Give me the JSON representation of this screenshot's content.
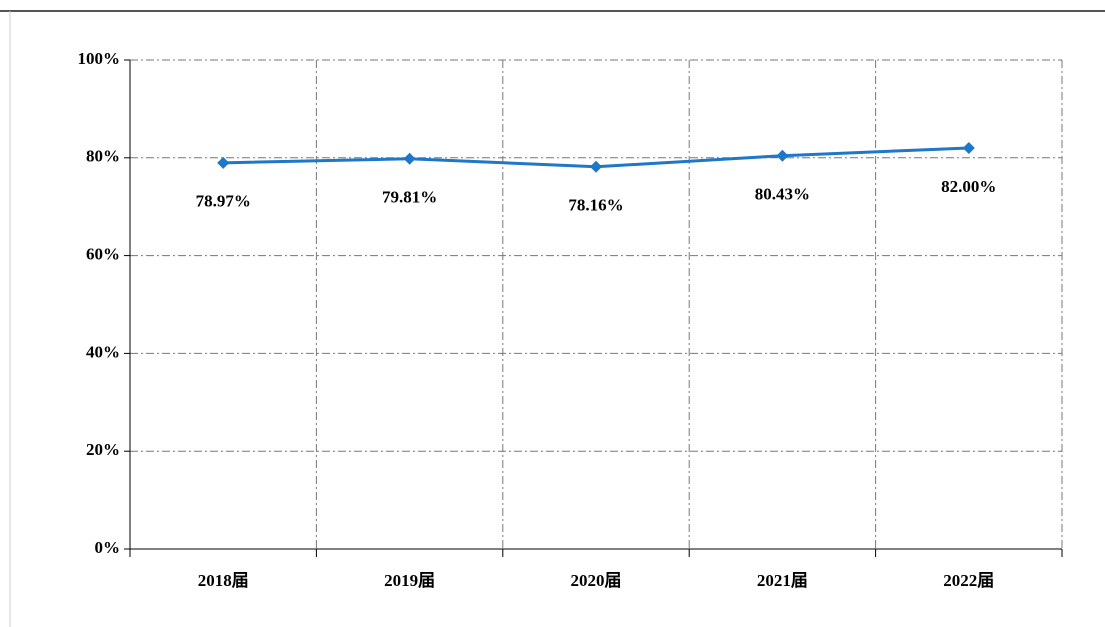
{
  "chart_data": {
    "type": "line",
    "categories": [
      "2018届",
      "2019届",
      "2020届",
      "2021届",
      "2022届"
    ],
    "series": [
      {
        "color": "#1f77c8",
        "values": [
          78.97,
          79.81,
          78.16,
          80.43,
          82.0
        ],
        "value_labels": [
          "78.97%",
          "79.81%",
          "78.16%",
          "80.43%",
          "82.00%"
        ]
      }
    ],
    "ylim": [
      0,
      100
    ],
    "yticks": [
      {
        "value": 0,
        "label": "0%"
      },
      {
        "value": 20,
        "label": "20%"
      },
      {
        "value": 40,
        "label": "40%"
      },
      {
        "value": 60,
        "label": "60%"
      },
      {
        "value": 80,
        "label": "80%"
      },
      {
        "value": 100,
        "label": "100%"
      }
    ],
    "grid": true
  }
}
